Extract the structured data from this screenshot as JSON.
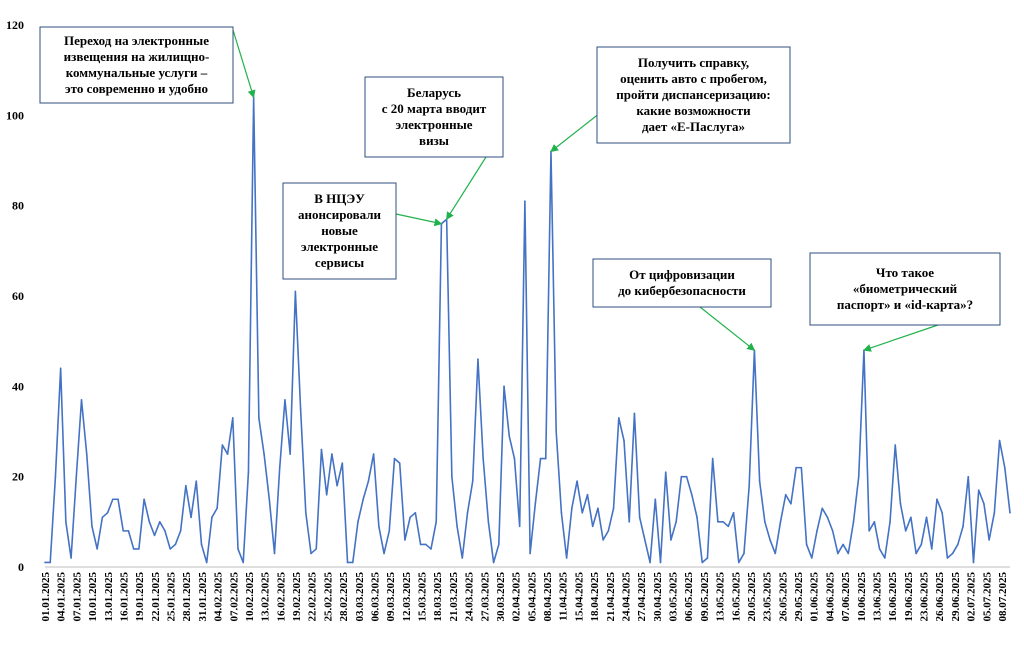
{
  "chart_data": {
    "type": "line",
    "title": "",
    "xlabel": "",
    "ylabel": "",
    "ylim": [
      0,
      120
    ],
    "yticks": [
      0,
      20,
      40,
      60,
      80,
      100,
      120
    ],
    "grid": false,
    "series_color": "#4472c4",
    "callout_border_color": "#2f4f7f",
    "arrow_color": "#22b14c",
    "x_tick_labels": [
      "01.01.2025",
      "04.01.2025",
      "07.01.2025",
      "10.01.2025",
      "13.01.2025",
      "16.01.2025",
      "19.01.2025",
      "22.01.2025",
      "25.01.2025",
      "28.01.2025",
      "31.01.2025",
      "04.02.2025",
      "07.02.2025",
      "10.02.2025",
      "13.02.2025",
      "16.02.2025",
      "19.02.2025",
      "22.02.2025",
      "25.02.2025",
      "28.02.2025",
      "03.03.2025",
      "06.03.2025",
      "09.03.2025",
      "12.03.2025",
      "15.03.2025",
      "18.03.2025",
      "21.03.2025",
      "24.03.2025",
      "27.03.2025",
      "30.03.2025",
      "02.04.2025",
      "05.04.2025",
      "08.04.2025",
      "11.04.2025",
      "15.04.2025",
      "18.04.2025",
      "21.04.2025",
      "24.04.2025",
      "27.04.2025",
      "30.04.2025",
      "03.05.2025",
      "06.05.2025",
      "09.05.2025",
      "13.05.2025",
      "16.05.2025",
      "20.05.2025",
      "23.05.2025",
      "26.05.2025",
      "29.05.2025",
      "01.06.2025",
      "04.06.2025",
      "07.06.2025",
      "10.06.2025",
      "13.06.2025",
      "16.06.2025",
      "19.06.2025",
      "23.06.2025",
      "26.06.2025",
      "29.06.2025",
      "02.07.2025",
      "05.07.2025",
      "08.07.2025"
    ],
    "values": [
      1,
      1,
      20,
      44,
      10,
      2,
      20,
      37,
      25,
      9,
      4,
      11,
      12,
      15,
      15,
      8,
      8,
      4,
      4,
      15,
      10,
      7,
      10,
      8,
      4,
      5,
      8,
      18,
      11,
      19,
      5,
      1,
      11,
      13,
      27,
      25,
      33,
      4,
      1,
      21,
      104,
      33,
      25,
      15,
      3,
      22,
      37,
      25,
      61,
      35,
      12,
      3,
      4,
      26,
      16,
      25,
      18,
      23,
      1,
      1,
      10,
      15,
      19,
      25,
      9,
      3,
      8,
      24,
      23,
      6,
      11,
      12,
      5,
      5,
      4,
      10,
      76,
      77,
      20,
      9,
      2,
      12,
      19,
      46,
      24,
      10,
      1,
      5,
      40,
      29,
      24,
      9,
      81,
      3,
      14,
      24,
      24,
      92,
      30,
      12,
      2,
      13,
      19,
      12,
      16,
      9,
      13,
      6,
      8,
      13,
      33,
      28,
      10,
      34,
      11,
      6,
      1,
      15,
      1,
      21,
      6,
      10,
      20,
      20,
      16,
      11,
      1,
      2,
      24,
      10,
      10,
      9,
      12,
      1,
      3,
      18,
      48,
      19,
      10,
      6,
      3,
      10,
      16,
      14,
      22,
      22,
      5,
      2,
      8,
      13,
      11,
      8,
      3,
      5,
      3,
      10,
      20,
      48,
      8,
      10,
      4,
      2,
      10,
      27,
      14,
      8,
      11,
      3,
      5,
      11,
      4,
      15,
      12,
      2,
      3,
      5,
      9,
      20,
      1,
      17,
      14,
      6,
      12,
      28,
      22,
      12
    ],
    "annotations": [
      {
        "text_lines": [
          "Переход на электронные",
          "извещения на жилищно-",
          "коммунальные услуги –",
          "это современно и удобно"
        ],
        "point_index": 40
      },
      {
        "text_lines": [
          "В НЦЭУ",
          "анонсировали",
          "новые",
          "электронные",
          "сервисы"
        ],
        "point_index": 76
      },
      {
        "text_lines": [
          "Беларусь",
          "с 20 марта вводит",
          "электронные",
          "визы"
        ],
        "point_index": 77
      },
      {
        "text_lines": [
          "Получить справку,",
          "оценить авто с пробегом,",
          "пройти диспансеризацию:",
          "какие возможности",
          "дает «Е-Паслуга»"
        ],
        "point_index": 97
      },
      {
        "text_lines": [
          "От цифровизации",
          "до кибербезопасности"
        ],
        "point_index": 136
      },
      {
        "text_lines": [
          "Что такое",
          "«биометрический",
          "паспорт» и «id-карта»?"
        ],
        "point_index": 157
      }
    ]
  }
}
